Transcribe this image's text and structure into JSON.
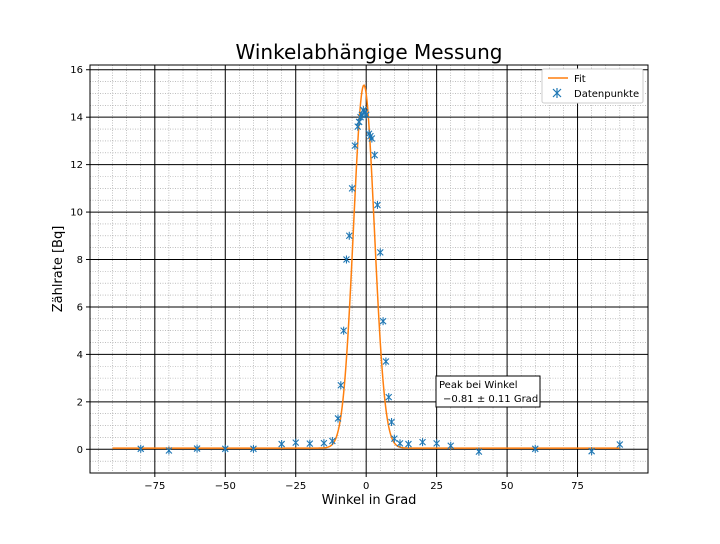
{
  "chart_data": {
    "type": "scatter",
    "title": "Winkelabhängige Messung",
    "xlabel": "Winkel in Grad",
    "ylabel": "Zählrate [Bq]",
    "xlim": [
      -98,
      100
    ],
    "ylim": [
      -1,
      16.2
    ],
    "x_ticks": [
      -75,
      -50,
      -25,
      0,
      25,
      50,
      75
    ],
    "x_tick_labels": [
      "−75",
      "−50",
      "−25",
      "0",
      "25",
      "50",
      "75"
    ],
    "y_ticks": [
      0,
      2,
      4,
      6,
      8,
      10,
      12,
      14,
      16
    ],
    "y_tick_labels": [
      "0",
      "2",
      "4",
      "6",
      "8",
      "10",
      "12",
      "14",
      "16"
    ],
    "grid": {
      "major": true,
      "minor": true
    },
    "legend_position": "top-right",
    "series": [
      {
        "name": "Fit",
        "kind": "line",
        "color": "#ff7f0e",
        "model": "gaussian",
        "amplitude": 15.3,
        "center": -0.81,
        "sigma": 3.7,
        "offset": 0.05,
        "x_range": [
          -90,
          90
        ]
      },
      {
        "name": "Datenpunkte",
        "kind": "points",
        "color": "#1f77b4",
        "marker": "star-x",
        "points": [
          [
            -80,
            0.02
          ],
          [
            -70,
            -0.05
          ],
          [
            -60,
            0.03
          ],
          [
            -50,
            0.02
          ],
          [
            -40,
            0.02
          ],
          [
            -30,
            0.22
          ],
          [
            -25,
            0.28
          ],
          [
            -20,
            0.24
          ],
          [
            -15,
            0.26
          ],
          [
            -12,
            0.35
          ],
          [
            -10,
            1.3
          ],
          [
            -9,
            2.7
          ],
          [
            -8,
            5.0
          ],
          [
            -7,
            8.0
          ],
          [
            -6,
            9.0
          ],
          [
            -5,
            11.0
          ],
          [
            -4,
            12.8
          ],
          [
            -3,
            13.6
          ],
          [
            -2.5,
            13.8
          ],
          [
            -2,
            14.0
          ],
          [
            -1.5,
            14.1
          ],
          [
            -1,
            14.3
          ],
          [
            -0.5,
            14.2
          ],
          [
            0,
            14.1
          ],
          [
            1,
            13.3
          ],
          [
            1.5,
            13.2
          ],
          [
            2,
            13.1
          ],
          [
            3,
            12.4
          ],
          [
            4,
            10.3
          ],
          [
            5,
            8.3
          ],
          [
            6,
            5.4
          ],
          [
            7,
            3.7
          ],
          [
            8,
            2.2
          ],
          [
            9,
            1.15
          ],
          [
            10,
            0.45
          ],
          [
            12,
            0.25
          ],
          [
            15,
            0.22
          ],
          [
            20,
            0.3
          ],
          [
            25,
            0.25
          ],
          [
            30,
            0.15
          ],
          [
            40,
            -0.1
          ],
          [
            60,
            0.02
          ],
          [
            80,
            -0.08
          ],
          [
            90,
            0.2
          ]
        ]
      }
    ],
    "annotation": {
      "line1": "Peak bei Winkel",
      "line2": "−0.81 ± 0.11 Grad"
    }
  }
}
